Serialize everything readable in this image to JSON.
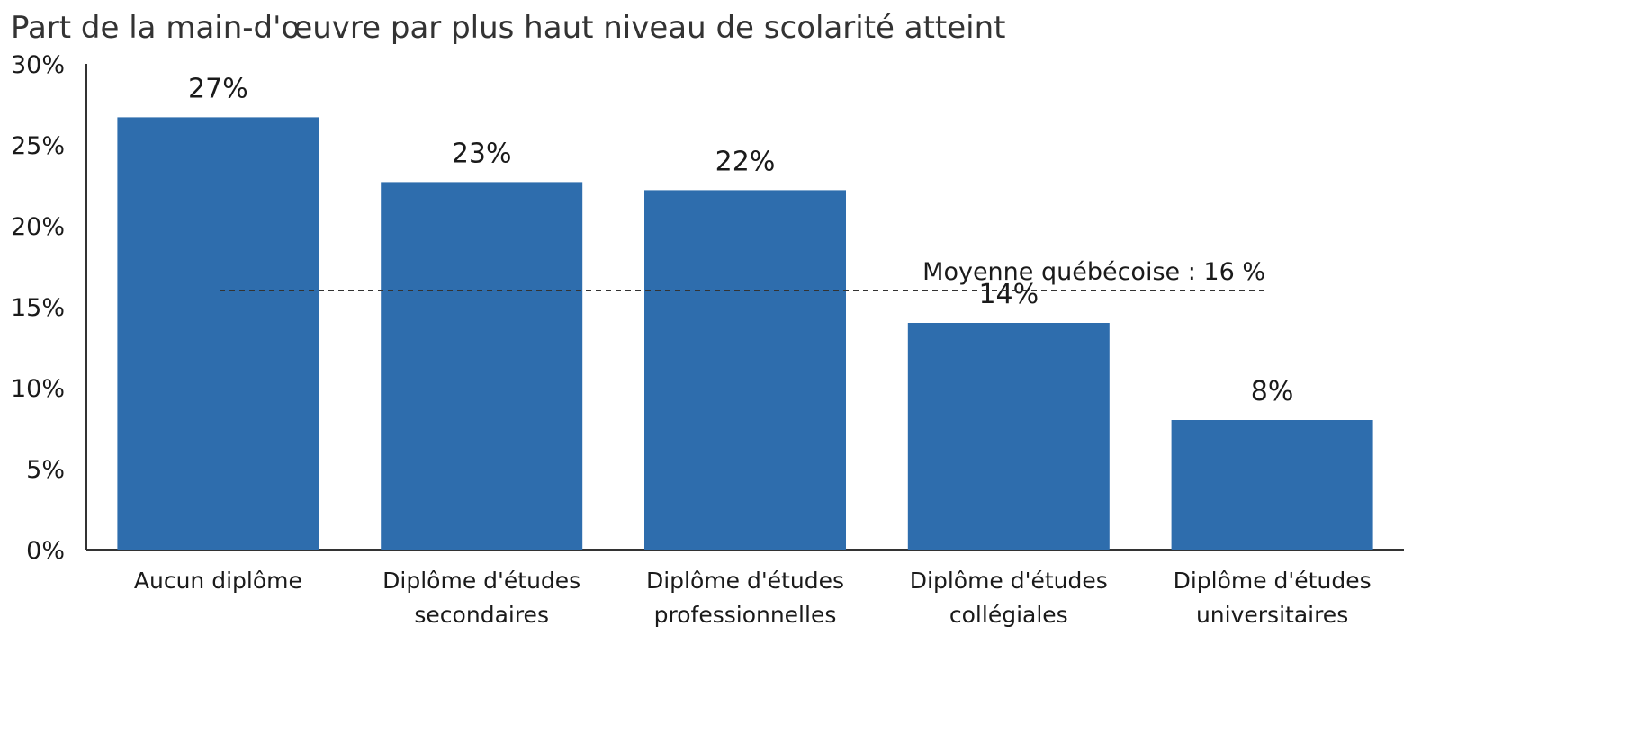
{
  "chart_data": {
    "type": "bar",
    "title": "Part de la main-d'œuvre par plus haut niveau de scolarité atteint",
    "xlabel": "",
    "ylabel": "",
    "categories": [
      [
        "Aucun diplôme"
      ],
      [
        "Diplôme d'études",
        "secondaires"
      ],
      [
        "Diplôme d'études",
        "professionnelles"
      ],
      [
        "Diplôme d'études",
        "collégiales"
      ],
      [
        "Diplôme d'études",
        "universitaires"
      ]
    ],
    "values": [
      26.7,
      22.7,
      22.2,
      14.0,
      8.0
    ],
    "data_labels": [
      "27%",
      "23%",
      "22%",
      "14%",
      "8%"
    ],
    "ylim": [
      0,
      30
    ],
    "yticks": [
      0,
      5,
      10,
      15,
      20,
      25,
      30
    ],
    "ytick_labels": [
      "0%",
      "5%",
      "10%",
      "15%",
      "20%",
      "25%",
      "30%"
    ],
    "reference_line": {
      "value": 16,
      "label": "Moyenne québécoise : 16 %",
      "style": "dashed"
    },
    "bar_color": "#2E6DAD",
    "grid": false,
    "legend": "none"
  }
}
